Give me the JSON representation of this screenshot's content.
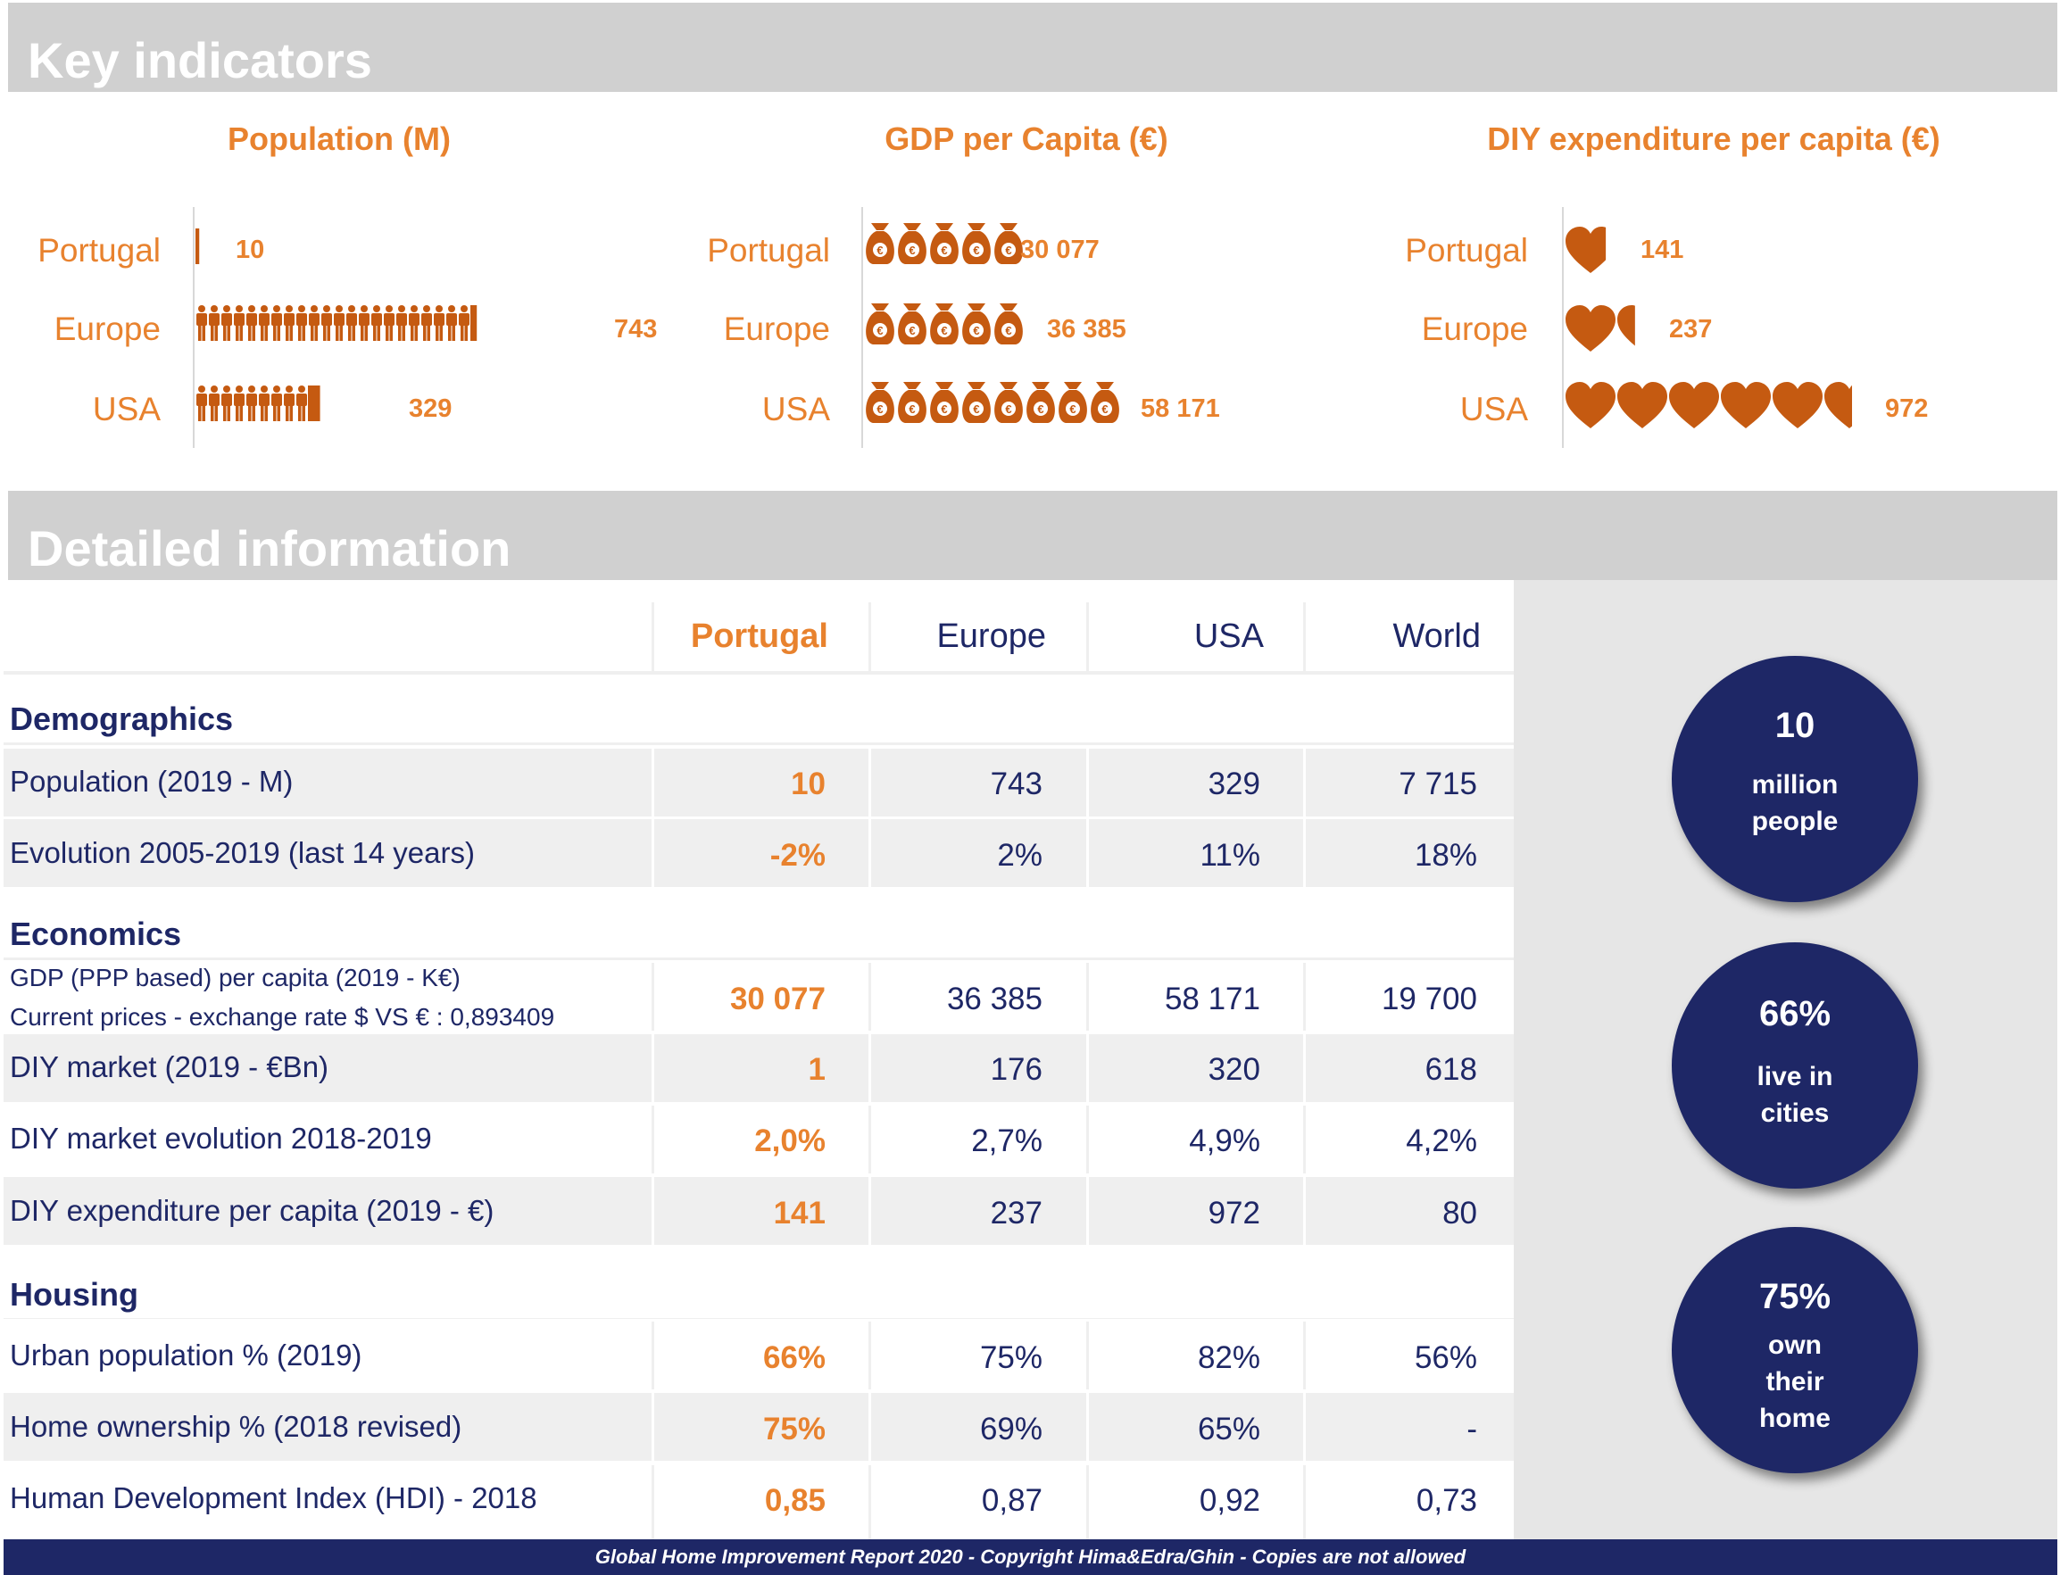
{
  "key_indicators": {
    "title": "Key indicators",
    "population": {
      "title": "Population (M)",
      "rows": [
        {
          "label": "Portugal",
          "value": "10",
          "n": 10
        },
        {
          "label": "Europe",
          "value": "743",
          "n": 743
        },
        {
          "label": "USA",
          "value": "329",
          "n": 329
        }
      ]
    },
    "gdp": {
      "title": "GDP per Capita (€)",
      "rows": [
        {
          "label": "Portugal",
          "value": "30 077",
          "n": 30077
        },
        {
          "label": "Europe",
          "value": "36 385",
          "n": 36385
        },
        {
          "label": "USA",
          "value": "58 171",
          "n": 58171
        }
      ]
    },
    "diy": {
      "title": "DIY expenditure per capita (€)",
      "rows": [
        {
          "label": "Portugal",
          "value": "141",
          "n": 141
        },
        {
          "label": "Europe",
          "value": "237",
          "n": 237
        },
        {
          "label": "USA",
          "value": "972",
          "n": 972
        }
      ]
    }
  },
  "detailed": {
    "title": "Detailed information",
    "columns": [
      "Portugal",
      "Europe",
      "USA",
      "World"
    ],
    "sections": {
      "demographics": "Demographics",
      "economics": "Economics",
      "housing": "Housing"
    },
    "rows": {
      "population": {
        "label": "Population (2019 - M)",
        "values": [
          "10",
          "743",
          "329",
          "7 715"
        ]
      },
      "evolution": {
        "label": "Evolution 2005-2019 (last 14 years)",
        "values": [
          "-2%",
          "2%",
          "11%",
          "18%"
        ]
      },
      "gdp": {
        "label": "GDP (PPP based) per capita (2019 - K€)",
        "label2": "Current prices - exchange rate $ VS € : 0,893409",
        "values": [
          "30 077",
          "36 385",
          "58 171",
          "19 700"
        ]
      },
      "diy_market": {
        "label": "DIY market (2019 - €Bn)",
        "values": [
          "1",
          "176",
          "320",
          "618"
        ]
      },
      "diy_evolution": {
        "label": "DIY market evolution 2018-2019",
        "values": [
          "2,0%",
          "2,7%",
          "4,9%",
          "4,2%"
        ]
      },
      "diy_exp": {
        "label": "DIY expenditure per capita (2019 - €)",
        "values": [
          "141",
          "237",
          "972",
          "80"
        ]
      },
      "urban": {
        "label": "Urban population % (2019)",
        "values": [
          "66%",
          "75%",
          "82%",
          "56%"
        ]
      },
      "ownership": {
        "label": "Home ownership % (2018 revised)",
        "values": [
          "75%",
          "69%",
          "65%",
          "-"
        ]
      },
      "hdi": {
        "label": "Human Development Index (HDI) - 2018",
        "values": [
          "0,85",
          "0,87",
          "0,92",
          "0,73"
        ]
      }
    }
  },
  "bubbles": [
    {
      "big": "10",
      "line1": "million",
      "line2": "people"
    },
    {
      "big": "66%",
      "line1": "live in",
      "line2": "cities"
    },
    {
      "big": "75%",
      "line1": "own",
      "line2": "their",
      "line3": "home"
    }
  ],
  "footer": "Global Home Improvement Report 2020 - Copyright Hima&Edra/Ghin - Copies are not allowed",
  "colors": {
    "orange": "#e8822e",
    "icon": "#c55a11",
    "navy": "#1e2766",
    "band": "#d0d0d0"
  },
  "icons": {
    "population": "person-icon",
    "gdp": "money-bag-icon",
    "diy": "heart-icon"
  }
}
